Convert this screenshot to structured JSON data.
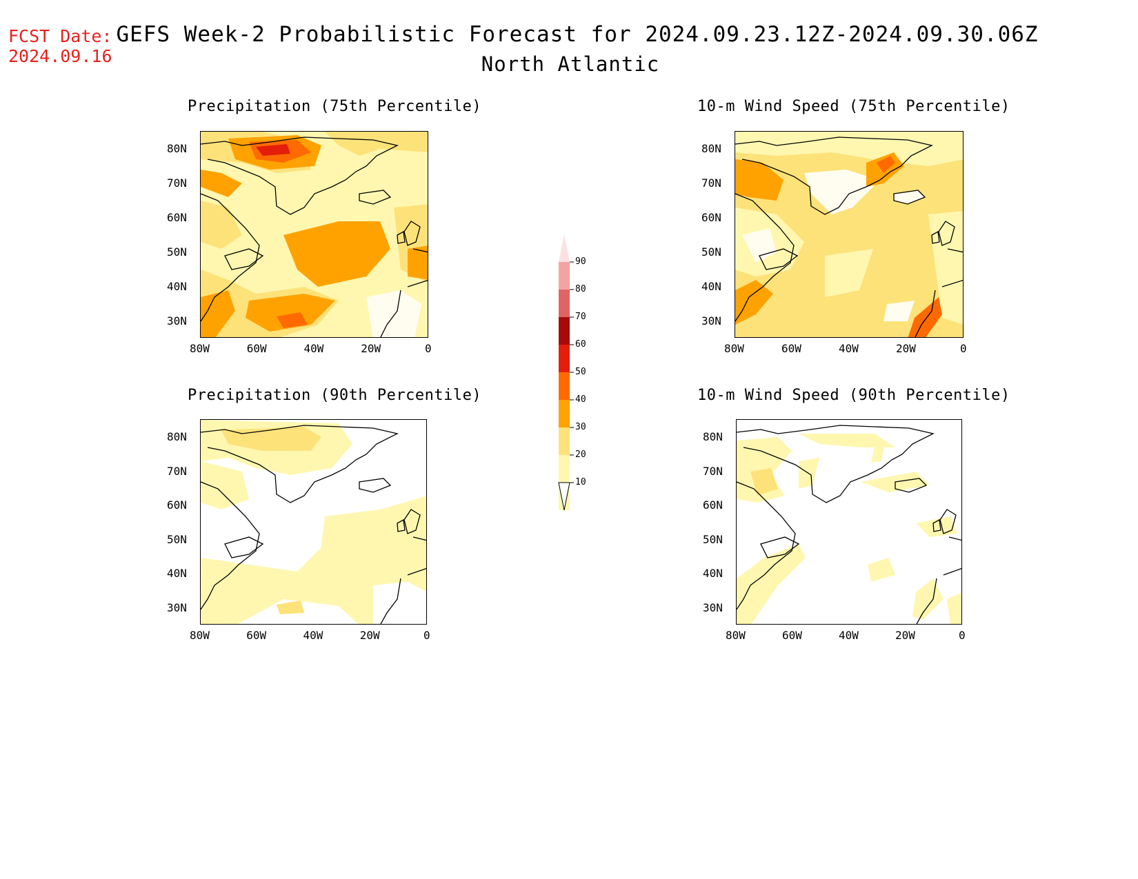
{
  "fcst": {
    "line1": "FCST Date:",
    "line2": "2024.09.16"
  },
  "title": "GEFS Week-2 Probabilistic Forecast for 2024.09.23.12Z-2024.09.30.06Z",
  "region": "North Atlantic",
  "panels": [
    {
      "title": "Precipitation (75th Percentile)"
    },
    {
      "title": "10-m Wind Speed (75th Percentile)"
    },
    {
      "title": "Precipitation (90th Percentile)"
    },
    {
      "title": "10-m Wind Speed (90th Percentile)"
    }
  ],
  "axes": {
    "lat_labels": [
      "80N",
      "70N",
      "60N",
      "50N",
      "40N",
      "30N"
    ],
    "lon_labels": [
      "80W",
      "60W",
      "40W",
      "20W",
      "0"
    ]
  },
  "colorbar": {
    "labels": [
      "90",
      "80",
      "70",
      "60",
      "50",
      "40",
      "30",
      "20",
      "10"
    ],
    "colors": {
      "90": "#fde0e0",
      "80": "#f4a3a3",
      "70": "#e06464",
      "60": "#a70a0a",
      "50": "#e41e0a",
      "40": "#ff6a00",
      "30": "#ffa200",
      "20": "#fde27a",
      "10": "#fff7b0"
    }
  }
}
